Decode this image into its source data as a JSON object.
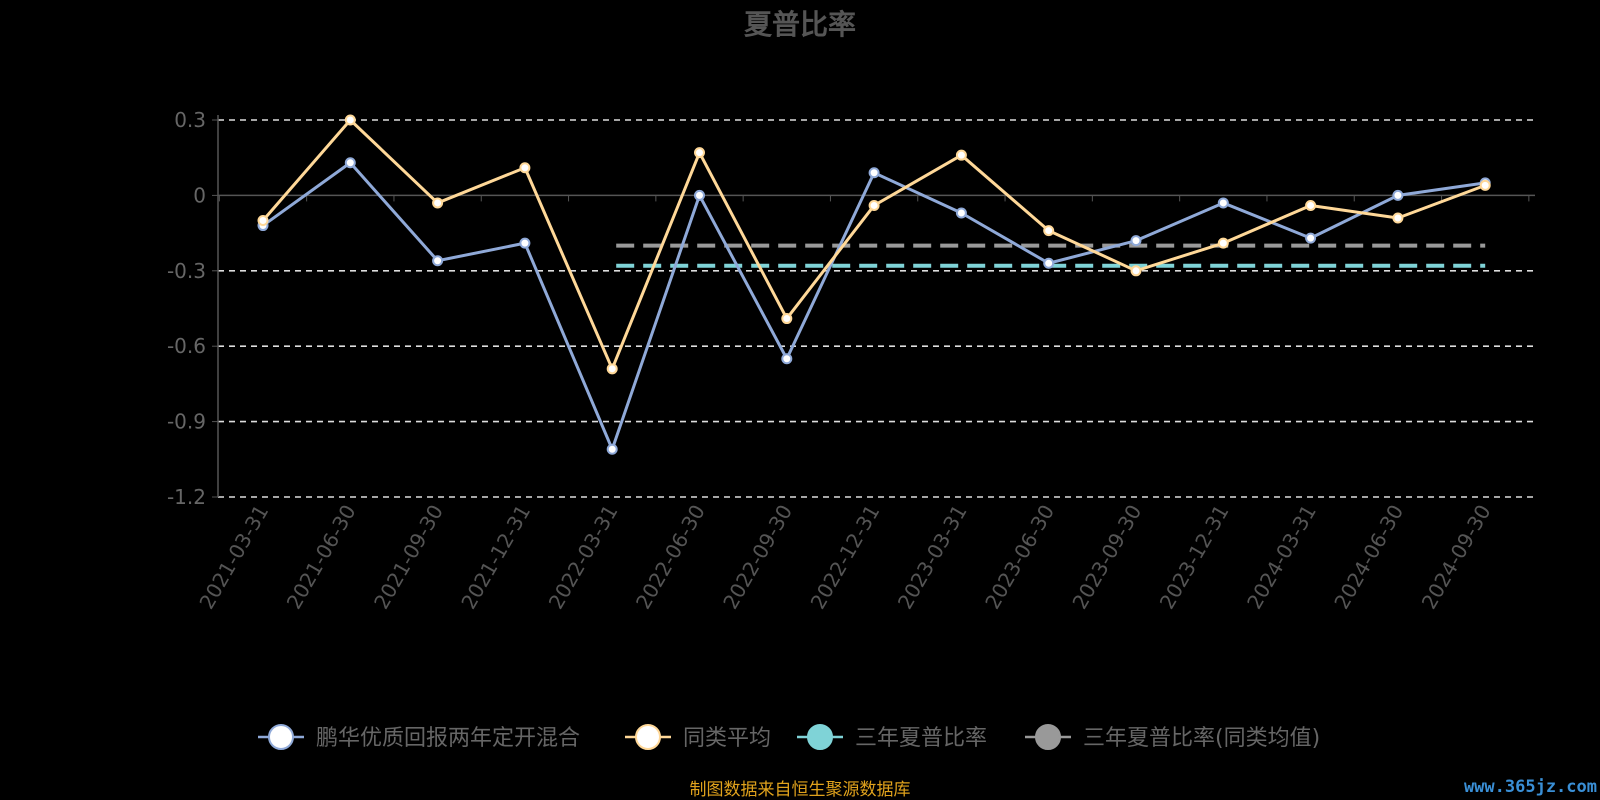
{
  "chart_data": {
    "type": "line",
    "title": "夏普比率",
    "categories": [
      "2021-03-31",
      "2021-06-30",
      "2021-09-30",
      "2021-12-31",
      "2022-03-31",
      "2022-06-30",
      "2022-09-30",
      "2022-12-31",
      "2023-03-31",
      "2023-06-30",
      "2023-09-30",
      "2023-12-31",
      "2024-03-31",
      "2024-06-30",
      "2024-09-30"
    ],
    "ylim": [
      -1.2,
      0.3
    ],
    "yticks": [
      "0.3",
      "0",
      "-0.3",
      "-0.6",
      "-0.9",
      "-1.2"
    ],
    "ytick_values": [
      0.3,
      0,
      -0.3,
      -0.6,
      -0.9,
      -1.2
    ],
    "grid": true,
    "legend_position": "bottom",
    "series": [
      {
        "name": "鹏华优质回报两年定开混合",
        "color": "#8fa9d8",
        "values": [
          -0.12,
          0.13,
          -0.26,
          -0.19,
          -1.01,
          0.0,
          -0.65,
          0.09,
          -0.07,
          -0.27,
          -0.18,
          -0.03,
          -0.17,
          0.0,
          0.05
        ]
      },
      {
        "name": "同类平均",
        "color": "#ffd898",
        "values": [
          -0.1,
          0.3,
          -0.03,
          0.11,
          -0.69,
          0.17,
          -0.49,
          -0.04,
          0.16,
          -0.14,
          -0.3,
          -0.19,
          -0.04,
          -0.09,
          0.04
        ]
      },
      {
        "name": "三年夏普比率",
        "color": "#7fd3d7",
        "constant": -0.28,
        "start_index": 4
      },
      {
        "name": "三年夏普比率(同类均值)",
        "color": "#999999",
        "constant": -0.2,
        "start_index": 4
      }
    ]
  },
  "footer": "制图数据来自恒生聚源数据库",
  "watermark": "www.365jz.com"
}
